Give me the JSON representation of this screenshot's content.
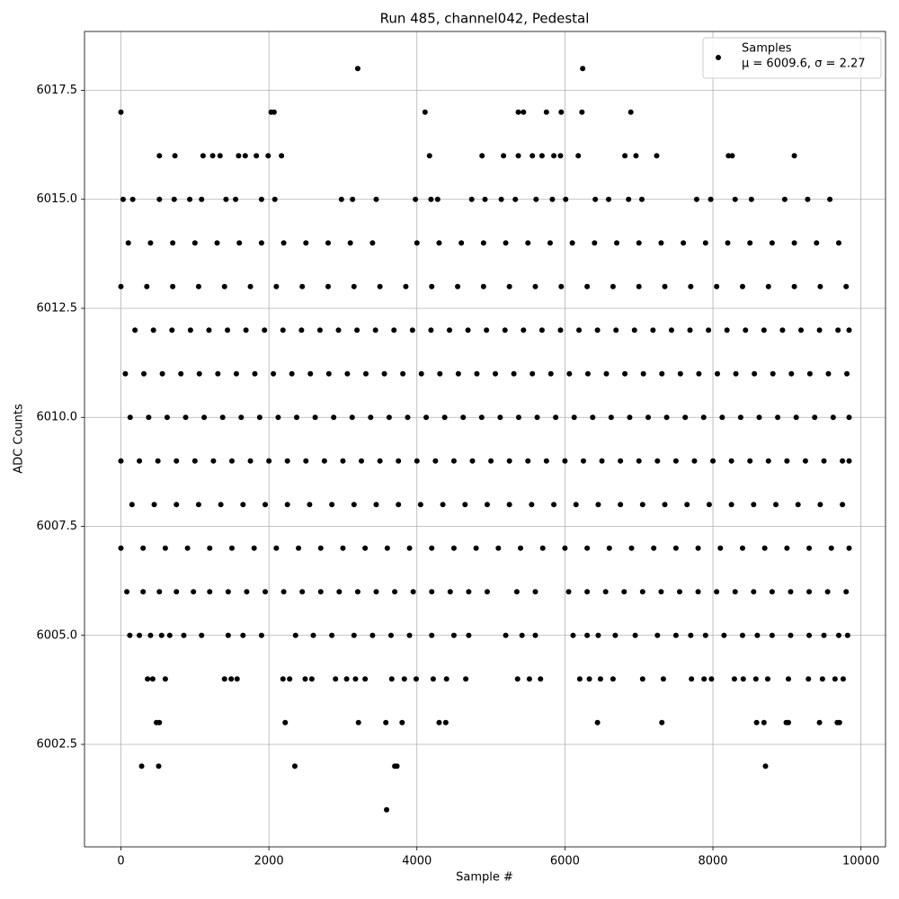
{
  "chart_data": {
    "type": "scatter",
    "title": "Run 485, channel042, Pedestal",
    "x_label": "Sample #",
    "y_label": "ADC Counts",
    "xlim": [
      -492,
      10332
    ],
    "ylim": [
      6000.15,
      6018.85
    ],
    "xticks": [
      0,
      2000,
      4000,
      6000,
      8000,
      10000
    ],
    "yticks": [
      6002.5,
      {
        "value": 6005,
        "label": "6005.0"
      },
      6007.5,
      {
        "value": 6010,
        "label": "6010.0"
      },
      6012.5,
      {
        "value": 6015,
        "label": "6015.0"
      },
      6017.5
    ],
    "grid": true,
    "legend": "upper right",
    "legend_note": "μ = 6009.6, σ = 2.27",
    "series": [
      {
        "name": "Samples",
        "color": "#000000",
        "x": [
          3200,
          6240,
          3590,
          280,
          510,
          2350,
          3700,
          3730,
          8710,
          480,
          520,
          2220,
          3210,
          3580,
          3800,
          4300,
          4390,
          6440,
          7310,
          8590,
          8690,
          8990,
          9020,
          9440,
          9680,
          9710,
          0,
          2030,
          2070,
          4110,
          5370,
          5440,
          5750,
          5950,
          6230,
          6890,
          520,
          730,
          1110,
          1240,
          1340,
          1590,
          1680,
          1830,
          1990,
          2170,
          4170,
          4880,
          5170,
          5370,
          5560,
          5690,
          5850,
          5940,
          6180,
          6810,
          6960,
          7240,
          8210,
          8260,
          9100,
          30,
          160,
          520,
          720,
          930,
          1090,
          1420,
          1550,
          1900,
          2080,
          2980,
          3130,
          3450,
          3980,
          4190,
          4280,
          4740,
          4920,
          5140,
          5330,
          5610,
          5830,
          6010,
          6410,
          6590,
          6860,
          7040,
          7780,
          7970,
          8300,
          8520,
          8970,
          9280,
          9580,
          360,
          430,
          600,
          1400,
          1490,
          1570,
          2190,
          2280,
          2490,
          2580,
          2900,
          3050,
          3170,
          3300,
          3660,
          3830,
          3990,
          4220,
          4400,
          4660,
          5360,
          5520,
          5670,
          6200,
          6330,
          6480,
          6650,
          7050,
          7330,
          7710,
          7880,
          7980,
          8290,
          8410,
          8580,
          8740,
          9020,
          9290,
          9480,
          9650,
          9760,
          120,
          250,
          400,
          550,
          660,
          850,
          1090,
          1450,
          1650,
          1900,
          2360,
          2600,
          2850,
          3150,
          3400,
          3650,
          3900,
          4200,
          4500,
          4700,
          5200,
          5420,
          5600,
          6110,
          6300,
          6450,
          6680,
          6950,
          7250,
          7500,
          7700,
          7900,
          8150,
          8400,
          8600,
          8800,
          9050,
          9300,
          9500,
          9700,
          9820,
          80,
          300,
          520,
          750,
          980,
          1200,
          1450,
          1700,
          1950,
          2200,
          2450,
          2700,
          2950,
          3200,
          3450,
          3700,
          3950,
          4200,
          4450,
          4700,
          4950,
          5350,
          5600,
          6050,
          6300,
          6550,
          6800,
          7050,
          7300,
          7550,
          7800,
          8050,
          8300,
          8550,
          8800,
          9050,
          9300,
          9550,
          9800,
          0,
          300,
          600,
          900,
          1200,
          1500,
          1800,
          2100,
          2400,
          2700,
          3000,
          3300,
          3600,
          3900,
          4200,
          4500,
          4800,
          5100,
          5400,
          5700,
          6000,
          6300,
          6600,
          6900,
          7200,
          7500,
          7800,
          8100,
          8400,
          8700,
          9000,
          9300,
          9600,
          9840,
          150,
          450,
          750,
          1050,
          1350,
          1650,
          1950,
          2250,
          2550,
          2850,
          3150,
          3450,
          3750,
          4050,
          4350,
          4650,
          4950,
          5250,
          5550,
          5850,
          6150,
          6450,
          6750,
          7050,
          7350,
          7650,
          7950,
          8250,
          8550,
          8850,
          9150,
          9450,
          9750,
          0,
          250,
          500,
          750,
          1000,
          1250,
          1500,
          1750,
          2000,
          2250,
          2500,
          2750,
          3000,
          3250,
          3500,
          3750,
          4000,
          4250,
          4500,
          4750,
          5000,
          5250,
          5500,
          5750,
          6000,
          6250,
          6500,
          6750,
          7000,
          7250,
          7500,
          7750,
          8000,
          8250,
          8500,
          8750,
          9000,
          9250,
          9500,
          9750,
          9840,
          125,
          375,
          625,
          875,
          1125,
          1375,
          1625,
          1875,
          2125,
          2375,
          2625,
          2875,
          3125,
          3375,
          3625,
          3875,
          4125,
          4375,
          4625,
          4875,
          5125,
          5375,
          5625,
          5875,
          6125,
          6375,
          6625,
          6875,
          7125,
          7375,
          7625,
          7875,
          8125,
          8375,
          8625,
          8875,
          9125,
          9375,
          9625,
          9840,
          60,
          310,
          560,
          810,
          1060,
          1310,
          1560,
          1810,
          2060,
          2310,
          2560,
          2810,
          3060,
          3310,
          3560,
          3810,
          4060,
          4310,
          4560,
          4810,
          5060,
          5310,
          5560,
          5810,
          6060,
          6310,
          6560,
          6810,
          7060,
          7310,
          7560,
          7810,
          8060,
          8310,
          8560,
          8810,
          9060,
          9310,
          9560,
          9810,
          190,
          440,
          690,
          940,
          1190,
          1440,
          1690,
          1940,
          2190,
          2440,
          2690,
          2940,
          3190,
          3440,
          3690,
          3940,
          4190,
          4440,
          4690,
          4940,
          5190,
          5440,
          5690,
          5940,
          6190,
          6440,
          6690,
          6940,
          7190,
          7440,
          7690,
          7940,
          8190,
          8440,
          8690,
          8940,
          9190,
          9440,
          9690,
          9840,
          0,
          350,
          700,
          1050,
          1400,
          1750,
          2100,
          2450,
          2800,
          3150,
          3500,
          3850,
          4200,
          4550,
          4900,
          5250,
          5600,
          5950,
          6300,
          6650,
          7000,
          7350,
          7700,
          8050,
          8400,
          8750,
          9100,
          9450,
          9800,
          100,
          400,
          700,
          1000,
          1300,
          1600,
          1900,
          2200,
          2500,
          2800,
          3100,
          3400,
          4000,
          4300,
          4600,
          4900,
          5200,
          5500,
          5800,
          6100,
          6400,
          6700,
          7000,
          7300,
          7600,
          7900,
          8200,
          8500,
          8800,
          9100,
          9400,
          9700
        ],
        "values": [
          6018,
          6018,
          6001,
          6002,
          6002,
          6002,
          6002,
          6002,
          6002,
          6003,
          6003,
          6003,
          6003,
          6003,
          6003,
          6003,
          6003,
          6003,
          6003,
          6003,
          6003,
          6003,
          6003,
          6003,
          6003,
          6003,
          6017,
          6017,
          6017,
          6017,
          6017,
          6017,
          6017,
          6017,
          6017,
          6017,
          6016,
          6016,
          6016,
          6016,
          6016,
          6016,
          6016,
          6016,
          6016,
          6016,
          6016,
          6016,
          6016,
          6016,
          6016,
          6016,
          6016,
          6016,
          6016,
          6016,
          6016,
          6016,
          6016,
          6016,
          6016,
          6015,
          6015,
          6015,
          6015,
          6015,
          6015,
          6015,
          6015,
          6015,
          6015,
          6015,
          6015,
          6015,
          6015,
          6015,
          6015,
          6015,
          6015,
          6015,
          6015,
          6015,
          6015,
          6015,
          6015,
          6015,
          6015,
          6015,
          6015,
          6015,
          6015,
          6015,
          6015,
          6015,
          6015,
          6004,
          6004,
          6004,
          6004,
          6004,
          6004,
          6004,
          6004,
          6004,
          6004,
          6004,
          6004,
          6004,
          6004,
          6004,
          6004,
          6004,
          6004,
          6004,
          6004,
          6004,
          6004,
          6004,
          6004,
          6004,
          6004,
          6004,
          6004,
          6004,
          6004,
          6004,
          6004,
          6004,
          6004,
          6004,
          6004,
          6004,
          6004,
          6004,
          6004,
          6004,
          6005,
          6005,
          6005,
          6005,
          6005,
          6005,
          6005,
          6005,
          6005,
          6005,
          6005,
          6005,
          6005,
          6005,
          6005,
          6005,
          6005,
          6005,
          6005,
          6005,
          6005,
          6005,
          6005,
          6005,
          6005,
          6005,
          6005,
          6005,
          6005,
          6005,
          6005,
          6005,
          6005,
          6005,
          6005,
          6005,
          6005,
          6005,
          6005,
          6005,
          6005,
          6006,
          6006,
          6006,
          6006,
          6006,
          6006,
          6006,
          6006,
          6006,
          6006,
          6006,
          6006,
          6006,
          6006,
          6006,
          6006,
          6006,
          6006,
          6006,
          6006,
          6006,
          6006,
          6006,
          6006,
          6006,
          6006,
          6006,
          6006,
          6006,
          6006,
          6006,
          6006,
          6006,
          6006,
          6006,
          6006,
          6006,
          6006,
          6006,
          6007,
          6007,
          6007,
          6007,
          6007,
          6007,
          6007,
          6007,
          6007,
          6007,
          6007,
          6007,
          6007,
          6007,
          6007,
          6007,
          6007,
          6007,
          6007,
          6007,
          6007,
          6007,
          6007,
          6007,
          6007,
          6007,
          6007,
          6007,
          6007,
          6007,
          6007,
          6007,
          6007,
          6007,
          6008,
          6008,
          6008,
          6008,
          6008,
          6008,
          6008,
          6008,
          6008,
          6008,
          6008,
          6008,
          6008,
          6008,
          6008,
          6008,
          6008,
          6008,
          6008,
          6008,
          6008,
          6008,
          6008,
          6008,
          6008,
          6008,
          6008,
          6008,
          6008,
          6008,
          6008,
          6008,
          6008,
          6009,
          6009,
          6009,
          6009,
          6009,
          6009,
          6009,
          6009,
          6009,
          6009,
          6009,
          6009,
          6009,
          6009,
          6009,
          6009,
          6009,
          6009,
          6009,
          6009,
          6009,
          6009,
          6009,
          6009,
          6009,
          6009,
          6009,
          6009,
          6009,
          6009,
          6009,
          6009,
          6009,
          6009,
          6009,
          6009,
          6009,
          6009,
          6009,
          6009,
          6009,
          6010,
          6010,
          6010,
          6010,
          6010,
          6010,
          6010,
          6010,
          6010,
          6010,
          6010,
          6010,
          6010,
          6010,
          6010,
          6010,
          6010,
          6010,
          6010,
          6010,
          6010,
          6010,
          6010,
          6010,
          6010,
          6010,
          6010,
          6010,
          6010,
          6010,
          6010,
          6010,
          6010,
          6010,
          6010,
          6010,
          6010,
          6010,
          6010,
          6010,
          6011,
          6011,
          6011,
          6011,
          6011,
          6011,
          6011,
          6011,
          6011,
          6011,
          6011,
          6011,
          6011,
          6011,
          6011,
          6011,
          6011,
          6011,
          6011,
          6011,
          6011,
          6011,
          6011,
          6011,
          6011,
          6011,
          6011,
          6011,
          6011,
          6011,
          6011,
          6011,
          6011,
          6011,
          6011,
          6011,
          6011,
          6011,
          6011,
          6011,
          6012,
          6012,
          6012,
          6012,
          6012,
          6012,
          6012,
          6012,
          6012,
          6012,
          6012,
          6012,
          6012,
          6012,
          6012,
          6012,
          6012,
          6012,
          6012,
          6012,
          6012,
          6012,
          6012,
          6012,
          6012,
          6012,
          6012,
          6012,
          6012,
          6012,
          6012,
          6012,
          6012,
          6012,
          6012,
          6012,
          6012,
          6012,
          6012,
          6012,
          6013,
          6013,
          6013,
          6013,
          6013,
          6013,
          6013,
          6013,
          6013,
          6013,
          6013,
          6013,
          6013,
          6013,
          6013,
          6013,
          6013,
          6013,
          6013,
          6013,
          6013,
          6013,
          6013,
          6013,
          6013,
          6013,
          6013,
          6013,
          6013,
          6014,
          6014,
          6014,
          6014,
          6014,
          6014,
          6014,
          6014,
          6014,
          6014,
          6014,
          6014,
          6014,
          6014,
          6014,
          6014,
          6014,
          6014,
          6014,
          6014,
          6014,
          6014,
          6014,
          6014,
          6014,
          6014,
          6014,
          6014,
          6014,
          6014,
          6014,
          6014
        ]
      }
    ]
  }
}
